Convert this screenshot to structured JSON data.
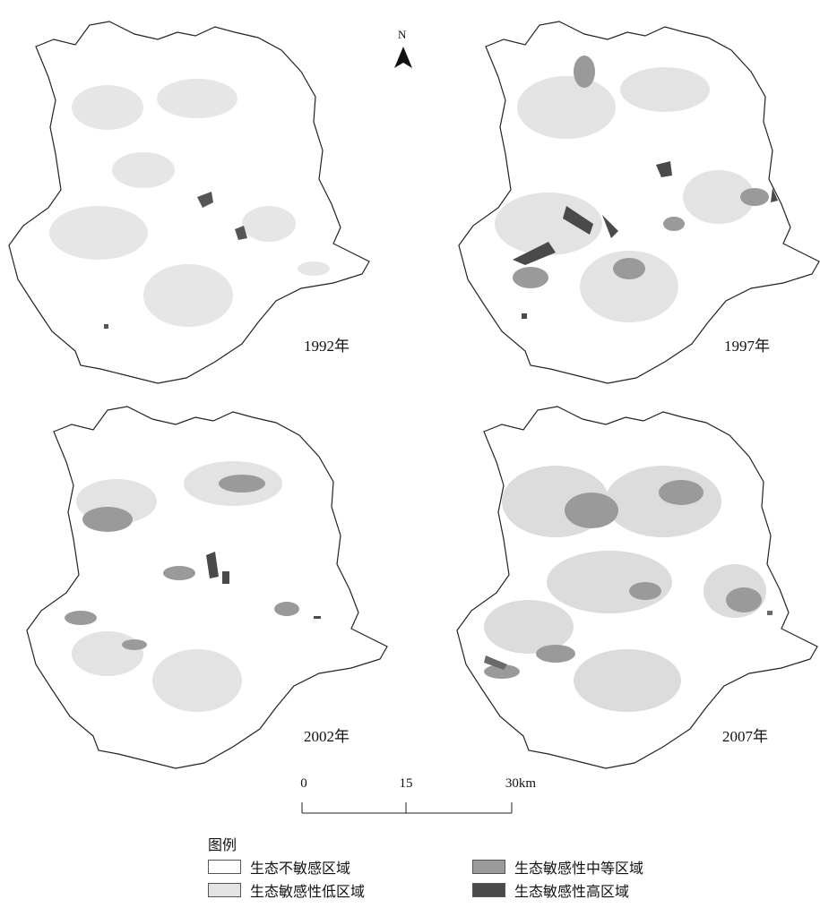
{
  "north": {
    "label": "N"
  },
  "panels": [
    {
      "year": "1992年"
    },
    {
      "year": "1997年"
    },
    {
      "year": "2002年"
    },
    {
      "year": "2007年"
    }
  ],
  "scale": {
    "ticks": [
      "0",
      "15",
      "30km"
    ]
  },
  "legend": {
    "title": "图例",
    "items": [
      {
        "label": "生态不敏感区域",
        "color": "#ffffff"
      },
      {
        "label": "生态敏感性中等区域",
        "color": "#9a9a9a"
      },
      {
        "label": "生态敏感性低区域",
        "color": "#e3e3e3"
      },
      {
        "label": "生态敏感性高区域",
        "color": "#4a4a4a"
      }
    ]
  }
}
